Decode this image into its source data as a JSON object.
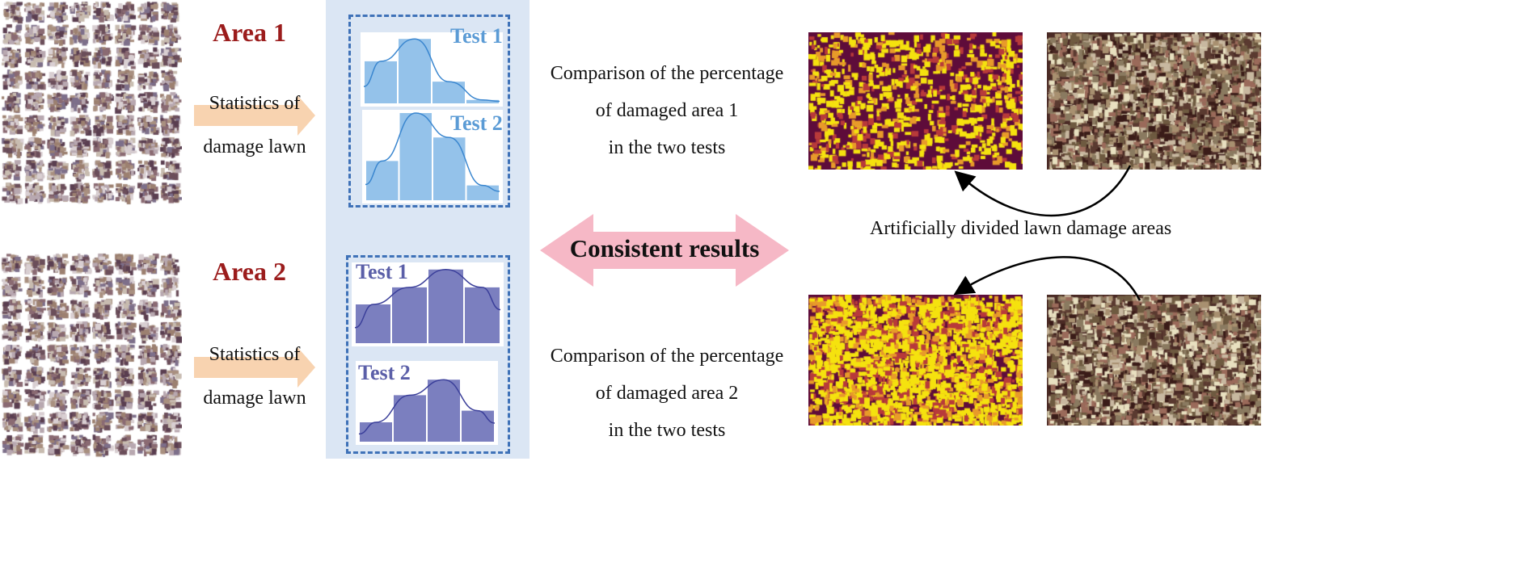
{
  "area1": {
    "label": "Area 1",
    "statistics_text": [
      "Statistics of",
      "damage lawn"
    ]
  },
  "area2": {
    "label": "Area 2",
    "statistics_text": [
      "Statistics of",
      "damage lawn"
    ]
  },
  "chart_data": [
    {
      "type": "bar",
      "title": "Test 1",
      "group": "Area 1",
      "values": [
        0.62,
        0.95,
        0.32,
        0.05
      ],
      "curve": true,
      "color": "#94c2ea",
      "label_color": "#5b9bd5"
    },
    {
      "type": "bar",
      "title": "Test 2",
      "group": "Area 1",
      "values": [
        0.45,
        1.0,
        0.72,
        0.17
      ],
      "curve": true,
      "color": "#94c2ea",
      "label_color": "#5b9bd5"
    },
    {
      "type": "bar",
      "title": "Test 1",
      "group": "Area 2",
      "values": [
        0.5,
        0.72,
        0.95,
        0.72
      ],
      "curve": true,
      "color": "#7b7fbf",
      "label_color": "#5b5fa8"
    },
    {
      "type": "bar",
      "title": "Test 2",
      "group": "Area 2",
      "values": [
        0.25,
        0.6,
        0.8,
        0.4
      ],
      "curve": true,
      "color": "#7b7fbf",
      "label_color": "#5b5fa8"
    }
  ],
  "center": {
    "consistent_label": "Consistent results"
  },
  "comparison1": [
    "Comparison of the percentage",
    "of damaged area 1",
    "in the two tests"
  ],
  "comparison2": [
    "Comparison of the percentage",
    "of damaged area 2",
    "in the two tests"
  ],
  "divided_label": "Artificially divided lawn damage areas",
  "colors": {
    "area_label": "#9b1c1c",
    "panel": "#dbe6f4",
    "arrow_peach": "#f8d3b0",
    "arrow_pink": "#f6b8c6",
    "damage_base": "#5e0c3a",
    "damage_highlight": "#f5e20f"
  }
}
